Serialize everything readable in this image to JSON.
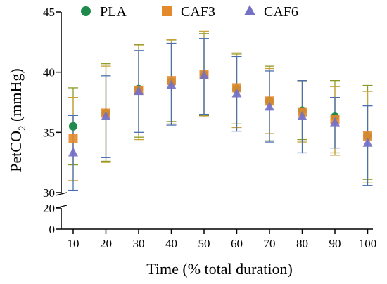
{
  "chart_data": {
    "type": "scatter",
    "xlabel": "Time (% total duration)",
    "ylabel_main": "PetCO",
    "ylabel_sub": "2",
    "ylabel_unit": " (mmHg)",
    "x": [
      10,
      20,
      30,
      40,
      50,
      60,
      70,
      80,
      90,
      100
    ],
    "x_tick_labels": [
      "10",
      "20",
      "30",
      "40",
      "50",
      "60",
      "70",
      "80",
      "90",
      "100"
    ],
    "y_ticks_upper": [
      {
        "value": 45,
        "label": "45"
      },
      {
        "value": 40,
        "label": "40"
      },
      {
        "value": 35,
        "label": "35"
      },
      {
        "value": 30,
        "label": "30"
      }
    ],
    "y_ticks_lower": [
      {
        "value": 20,
        "label": "20"
      },
      {
        "value": 0,
        "label": "0"
      }
    ],
    "ylim_upper": [
      30,
      45
    ],
    "ylim_lower": [
      0,
      20
    ],
    "axis_break": true,
    "grid": false,
    "legend_position": "top",
    "series": [
      {
        "name": "PLA",
        "marker": "circle",
        "color": "#1e8a4c",
        "errorColor": "#8a9a24",
        "values": [
          35.5,
          36.6,
          38.6,
          39.2,
          39.8,
          38.6,
          37.6,
          36.8,
          36.3,
          34.7
        ],
        "errorLow": [
          32.3,
          32.6,
          34.6,
          35.9,
          36.4,
          35.7,
          34.3,
          34.4,
          33.3,
          31.1
        ],
        "errorHigh": [
          38.7,
          40.7,
          42.3,
          42.6,
          43.2,
          41.5,
          40.5,
          39.3,
          39.3,
          38.9
        ]
      },
      {
        "name": "CAF3",
        "marker": "square",
        "color": "#e48a2c",
        "errorColor": "#c9a23a",
        "values": [
          34.5,
          36.6,
          38.5,
          39.3,
          39.8,
          38.7,
          37.6,
          36.7,
          36.1,
          34.7
        ],
        "errorLow": [
          31.0,
          32.5,
          34.4,
          35.7,
          36.3,
          35.4,
          34.9,
          34.2,
          33.1,
          30.8
        ],
        "errorHigh": [
          37.9,
          40.5,
          42.2,
          42.7,
          43.4,
          41.6,
          40.3,
          39.2,
          38.8,
          38.4
        ]
      },
      {
        "name": "CAF6",
        "marker": "triangle",
        "color": "#7470c6",
        "errorColor": "#4a6fb3",
        "values": [
          33.3,
          36.3,
          38.4,
          38.9,
          39.7,
          38.2,
          37.1,
          36.3,
          35.8,
          34.1
        ],
        "errorLow": [
          30.2,
          32.9,
          35.0,
          35.6,
          36.5,
          35.1,
          34.2,
          33.3,
          33.7,
          30.6
        ],
        "errorHigh": [
          36.4,
          39.7,
          41.8,
          42.4,
          42.8,
          41.3,
          40.1,
          39.3,
          37.9,
          37.2
        ]
      }
    ]
  }
}
